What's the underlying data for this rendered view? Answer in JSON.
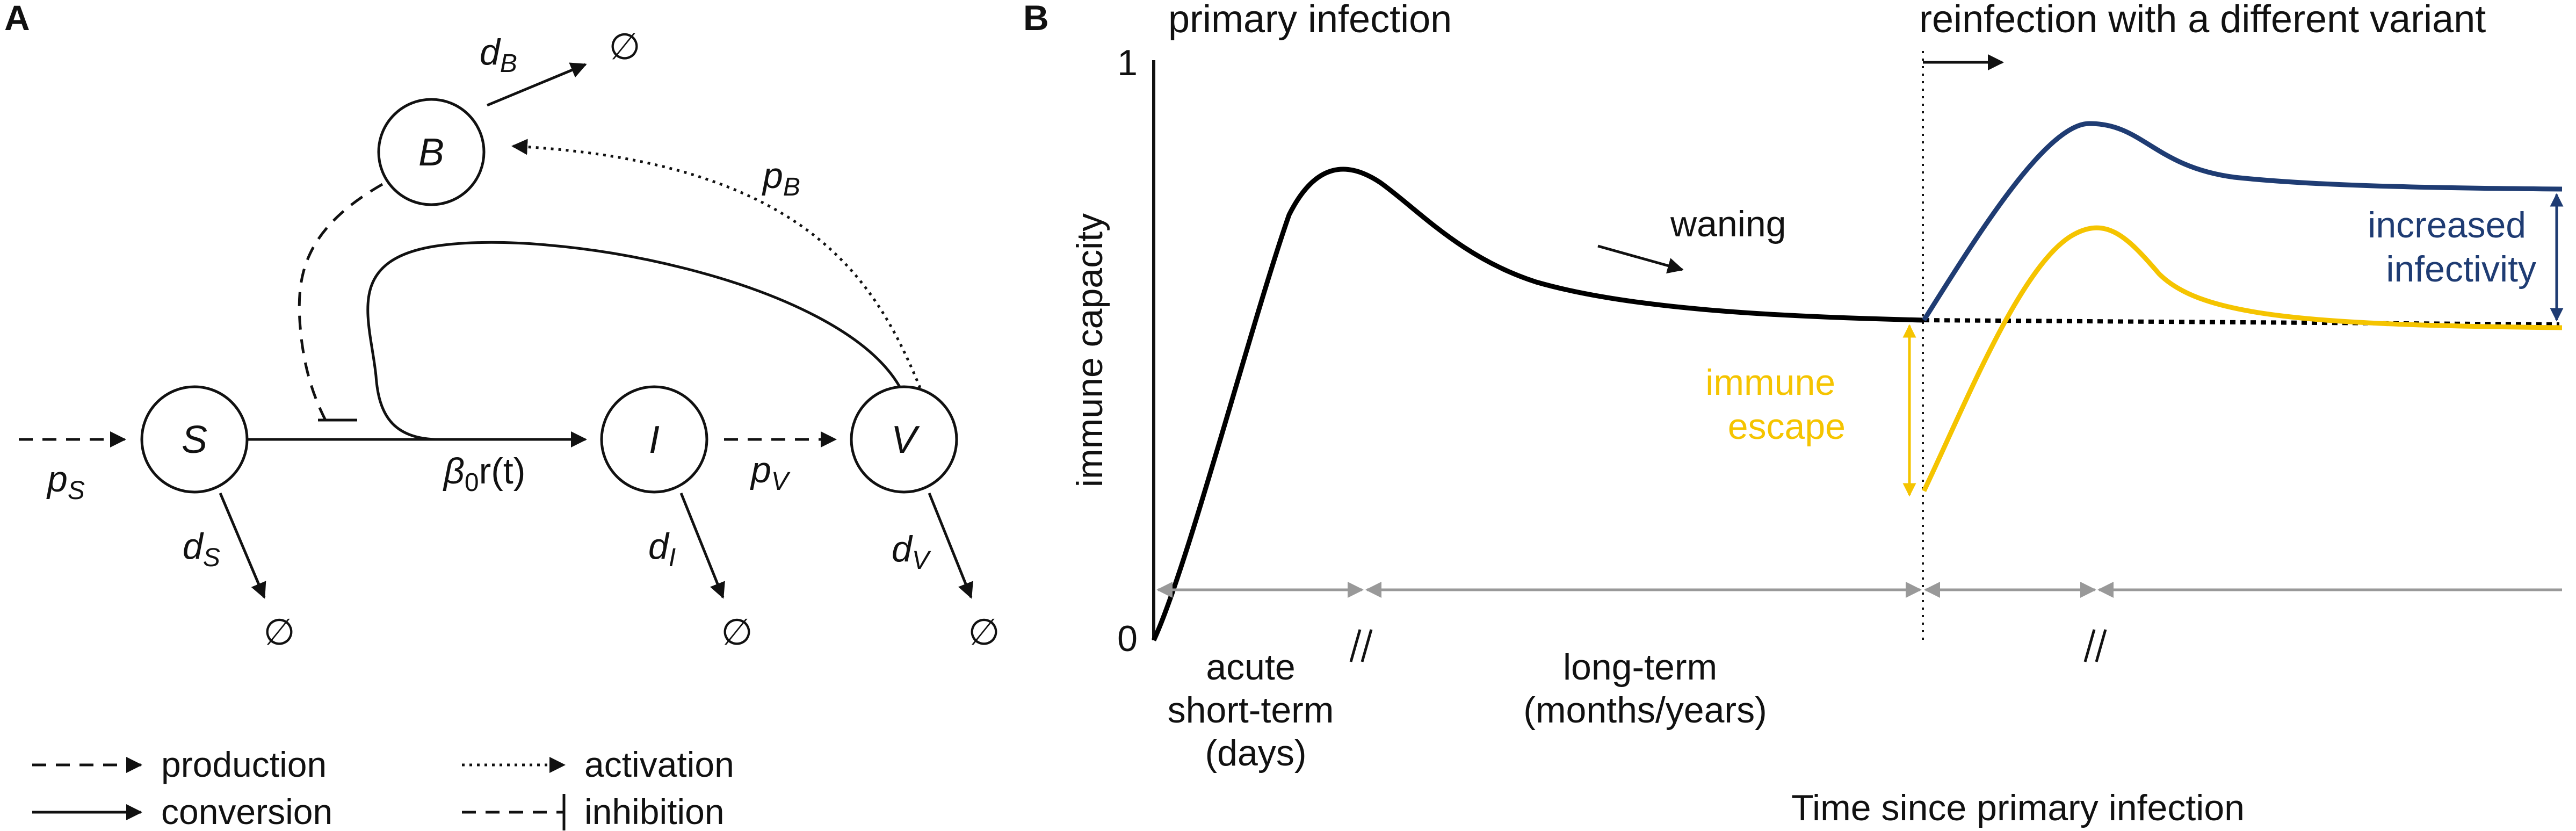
{
  "panel_a": {
    "label": "A",
    "nodes": {
      "s": "S",
      "i": "I",
      "v": "V",
      "b": "B"
    },
    "rates": {
      "p_s": {
        "main": "p",
        "sub": "S"
      },
      "d_s": {
        "main": "d",
        "sub": "S"
      },
      "d_i": {
        "main": "d",
        "sub": "I"
      },
      "p_v": {
        "main": "p",
        "sub": "V"
      },
      "d_v": {
        "main": "d",
        "sub": "V"
      },
      "d_b": {
        "main": "d",
        "sub": "B"
      },
      "p_b": {
        "main": "p",
        "sub": "B"
      },
      "beta": {
        "main": "β",
        "sub": "0",
        "rest": "r(t)"
      }
    },
    "null_symbol": "∅",
    "legend": {
      "production": "production",
      "conversion": "conversion",
      "activation": "activation",
      "inhibition": "inhibition"
    }
  },
  "panel_b": {
    "label": "B",
    "header_left": "primary infection",
    "header_right": "reinfection with a different variant",
    "y_axis_label": "immune capacity",
    "x_axis_label": "Time since primary infection",
    "y_ticks": [
      "0",
      "1"
    ],
    "waning_label": "waning",
    "immune_escape": [
      "immune",
      "escape"
    ],
    "increased_infectivity": [
      "increased",
      "infectivity"
    ],
    "periods": {
      "acute": [
        "acute",
        "short-term",
        "(days)"
      ],
      "long": [
        "long-term",
        "(months/years)"
      ]
    },
    "colors": {
      "primary": "#000000",
      "reinfection_blue": "#1f3c73",
      "reinfection_yellow": "#f5c400",
      "timeline": "#999999"
    }
  }
}
